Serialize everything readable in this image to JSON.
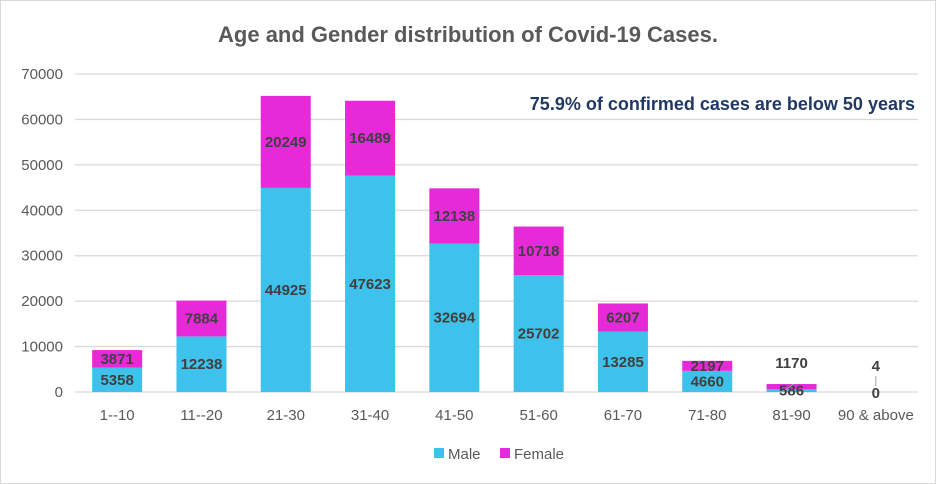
{
  "chart_data": {
    "type": "bar",
    "stacked": true,
    "title": "Age and Gender distribution of Covid-19 Cases.",
    "annotation": "75.9% of confirmed cases are below 50 years",
    "categories": [
      "1--10",
      "11--20",
      "21-30",
      "31-40",
      "41-50",
      "51-60",
      "61-70",
      "71-80",
      "81-90",
      "90 & above"
    ],
    "series": [
      {
        "name": "Male",
        "color": "#3EC1EA",
        "values": [
          5358,
          12238,
          44925,
          47623,
          32694,
          25702,
          13285,
          4660,
          586,
          0
        ]
      },
      {
        "name": "Female",
        "color": "#E62AD8",
        "values": [
          3871,
          7884,
          20249,
          16489,
          12138,
          10718,
          6207,
          2197,
          1170,
          4
        ]
      }
    ],
    "ylim": [
      0,
      70000
    ],
    "yticks": [
      0,
      10000,
      20000,
      30000,
      40000,
      50000,
      60000,
      70000
    ],
    "grid": true,
    "legend": "bottom",
    "data_labels": true
  }
}
